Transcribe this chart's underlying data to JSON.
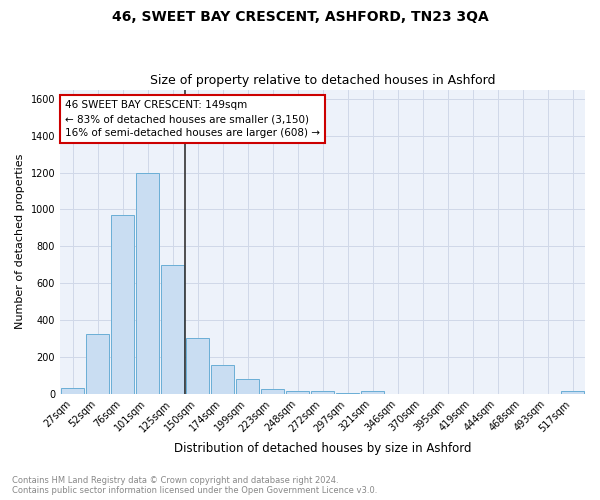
{
  "title": "46, SWEET BAY CRESCENT, ASHFORD, TN23 3QA",
  "subtitle": "Size of property relative to detached houses in Ashford",
  "xlabel": "Distribution of detached houses by size in Ashford",
  "ylabel": "Number of detached properties",
  "categories": [
    "27sqm",
    "52sqm",
    "76sqm",
    "101sqm",
    "125sqm",
    "150sqm",
    "174sqm",
    "199sqm",
    "223sqm",
    "248sqm",
    "272sqm",
    "297sqm",
    "321sqm",
    "346sqm",
    "370sqm",
    "395sqm",
    "419sqm",
    "444sqm",
    "468sqm",
    "493sqm",
    "517sqm"
  ],
  "values": [
    30,
    325,
    970,
    1200,
    700,
    305,
    155,
    80,
    25,
    15,
    15,
    5,
    15,
    0,
    0,
    0,
    0,
    0,
    0,
    0,
    15
  ],
  "bar_color": "#c9ddf2",
  "bar_edge_color": "#6aaed6",
  "highlight_index": 5,
  "highlight_line_color": "#333333",
  "annotation_line1": "46 SWEET BAY CRESCENT: 149sqm",
  "annotation_line2": "← 83% of detached houses are smaller (3,150)",
  "annotation_line3": "16% of semi-detached houses are larger (608) →",
  "annotation_box_color": "#ffffff",
  "annotation_box_edge": "#cc0000",
  "ylim": [
    0,
    1650
  ],
  "yticks": [
    0,
    200,
    400,
    600,
    800,
    1000,
    1200,
    1400,
    1600
  ],
  "grid_color": "#d0d8e8",
  "bg_color": "#edf2fa",
  "footer_text": "Contains HM Land Registry data © Crown copyright and database right 2024.\nContains public sector information licensed under the Open Government Licence v3.0.",
  "title_fontsize": 10,
  "subtitle_fontsize": 9,
  "xlabel_fontsize": 8.5,
  "ylabel_fontsize": 8,
  "tick_fontsize": 7,
  "annotation_fontsize": 7.5,
  "footer_fontsize": 6
}
